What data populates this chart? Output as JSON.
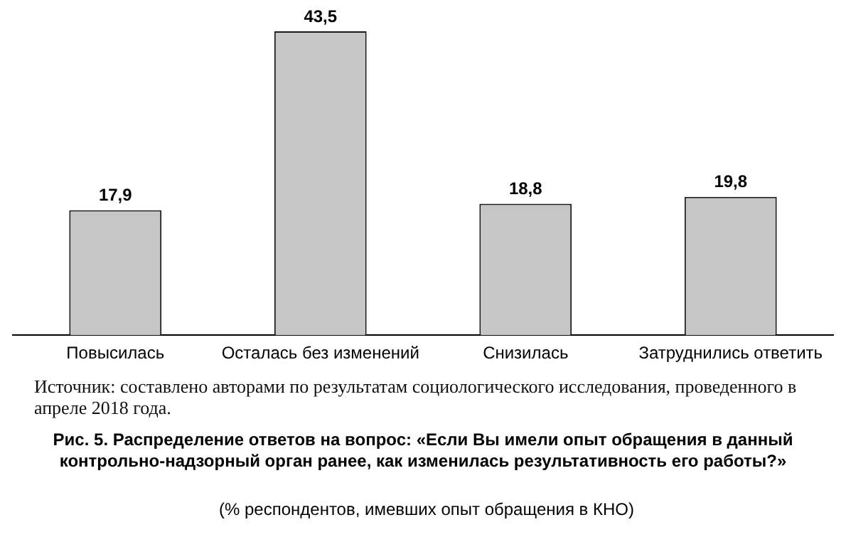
{
  "chart_data": {
    "type": "bar",
    "title": "Рис. 5. Распределение ответов на вопрос: «Если Вы имели опыт обращения в данный контрольно-надзорный орган ранее, как изменилась результативность его работы?»",
    "subtitle": "(% респондентов, имевших опыт обращения в КНО)",
    "categories": [
      "Повысилась",
      "Осталась без изменений",
      "Снизилась",
      "Затруднились ответить"
    ],
    "values": [
      17.9,
      43.5,
      18.8,
      19.8
    ],
    "color": "#c6c6c6",
    "value_labels": [
      "17,9",
      "43,5",
      "18,8",
      "19,8"
    ],
    "grid": false,
    "legend": false,
    "annotations": [
      "Источник: составлено авторами по результатам социологического исследования, проведенного в апреле 2018 года."
    ]
  }
}
